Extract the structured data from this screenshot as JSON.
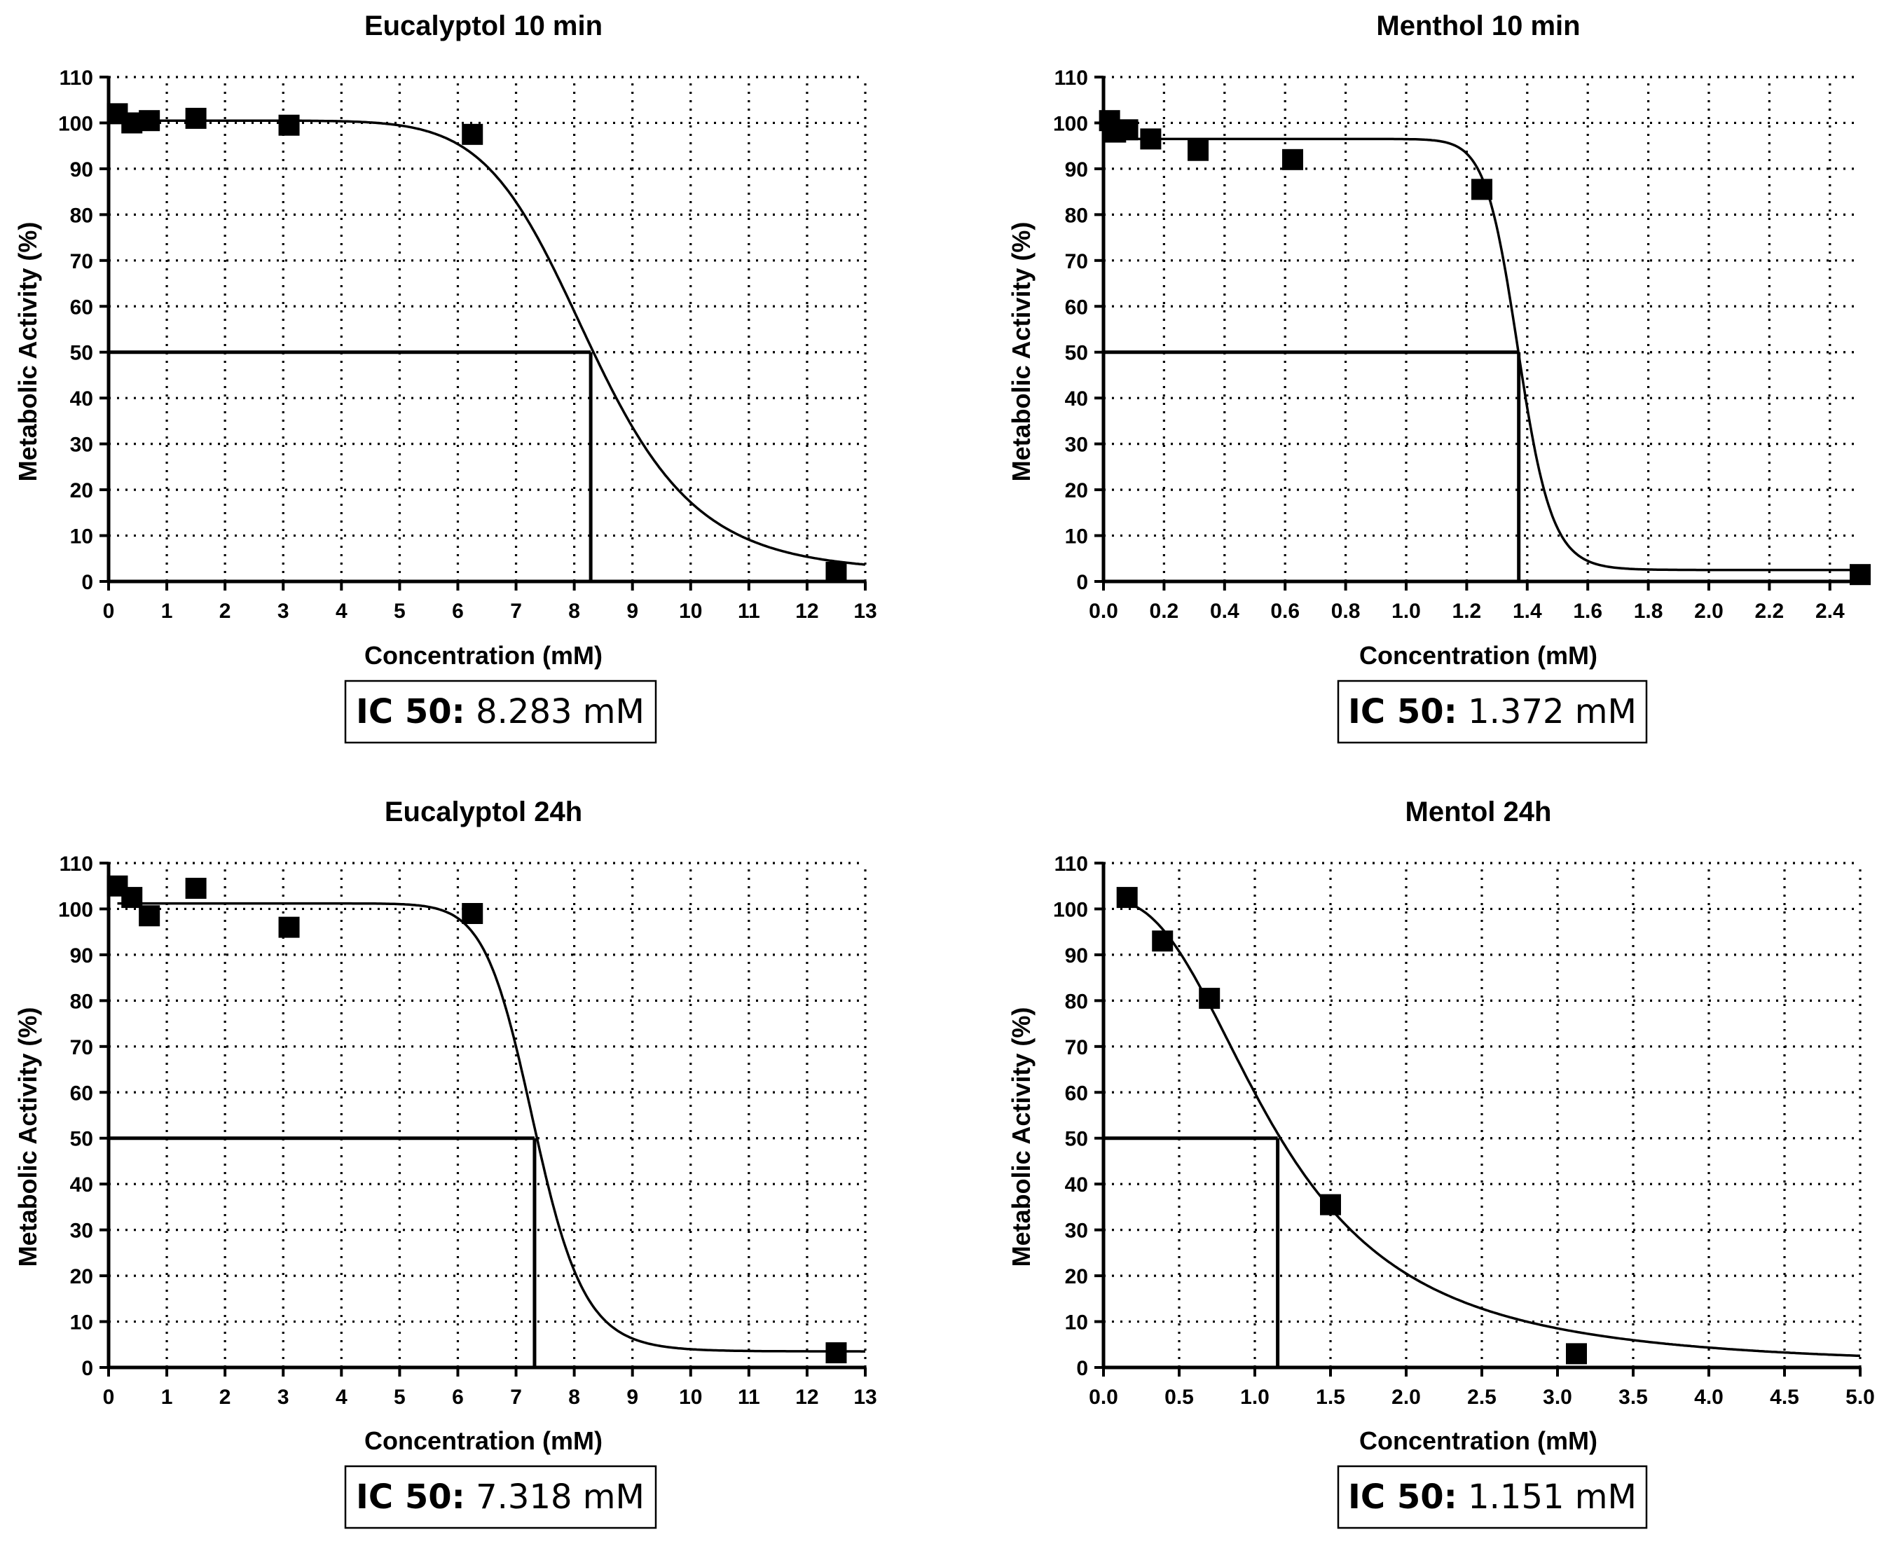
{
  "chart_data": [
    {
      "type": "scatter",
      "title": "Eucalyptol 10 min",
      "xlabel": "Concentration (mM)",
      "ylabel": "Metabolic Activity (%)",
      "xlim": [
        0,
        13
      ],
      "ylim": [
        0,
        110
      ],
      "x_ticks": [
        "0",
        "1",
        "2",
        "3",
        "4",
        "5",
        "6",
        "7",
        "8",
        "9",
        "10",
        "11",
        "12",
        "13"
      ],
      "y_ticks": [
        "0",
        "10",
        "20",
        "30",
        "40",
        "50",
        "60",
        "70",
        "80",
        "90",
        "100",
        "110"
      ],
      "grid": true,
      "points": {
        "x": [
          0.15,
          0.4,
          0.7,
          1.5,
          3.1,
          6.25,
          12.5
        ],
        "y": [
          102,
          100,
          100.5,
          101,
          99.5,
          97.5,
          2
        ]
      },
      "fit": {
        "top": 100.5,
        "bottom": 2,
        "ic50": 8.283,
        "hill": 9
      },
      "ic50_guide": {
        "x": 8.283,
        "y": 50
      },
      "ic50_label": "IC 50:",
      "ic50_value": "8.283 mM"
    },
    {
      "type": "scatter",
      "title": "Menthol 10 min",
      "xlabel": "Concentration (mM)",
      "ylabel": "Metabolic Activity (%)",
      "xlim": [
        0,
        2.5
      ],
      "ylim": [
        0,
        110
      ],
      "x_ticks": [
        "0.0",
        "0.2",
        "0.4",
        "0.6",
        "0.8",
        "1.0",
        "1.2",
        "1.4",
        "1.6",
        "1.8",
        "2.0",
        "2.2",
        "2.4"
      ],
      "y_ticks": [
        "0",
        "10",
        "20",
        "30",
        "40",
        "50",
        "60",
        "70",
        "80",
        "90",
        "100",
        "110"
      ],
      "grid": true,
      "points": {
        "x": [
          0.02,
          0.04,
          0.08,
          0.156,
          0.3125,
          0.625,
          1.25,
          2.5
        ],
        "y": [
          100.5,
          98,
          98.5,
          96.5,
          94,
          92,
          85.5,
          1.5
        ]
      },
      "fit": {
        "top": 96.5,
        "bottom": 2.5,
        "ic50": 1.372,
        "hill": 25
      },
      "ic50_guide": {
        "x": 1.372,
        "y": 50
      },
      "ic50_label": "IC 50:",
      "ic50_value": "1.372 mM"
    },
    {
      "type": "scatter",
      "title": "Eucalyptol 24h",
      "xlabel": "Concentration (mM)",
      "ylabel": "Metabolic Activity (%)",
      "xlim": [
        0,
        13
      ],
      "ylim": [
        0,
        110
      ],
      "x_ticks": [
        "0",
        "1",
        "2",
        "3",
        "4",
        "5",
        "6",
        "7",
        "8",
        "9",
        "10",
        "11",
        "12",
        "13"
      ],
      "y_ticks": [
        "0",
        "10",
        "20",
        "30",
        "40",
        "50",
        "60",
        "70",
        "80",
        "90",
        "100",
        "110"
      ],
      "grid": true,
      "points": {
        "x": [
          0.15,
          0.4,
          0.7,
          1.5,
          3.1,
          6.25,
          12.5
        ],
        "y": [
          105,
          102.5,
          98.5,
          104.5,
          96,
          99,
          3.2
        ]
      },
      "fit": {
        "top": 101.2,
        "bottom": 3.5,
        "ic50": 7.318,
        "hill": 17
      },
      "ic50_guide": {
        "x": 7.318,
        "y": 50
      },
      "ic50_label": "IC 50:",
      "ic50_value": "7.318 mM"
    },
    {
      "type": "scatter",
      "title": "Mentol 24h",
      "xlabel": "Concentration (mM)",
      "ylabel": "Metabolic Activity (%)",
      "xlim": [
        0,
        5
      ],
      "ylim": [
        0,
        110
      ],
      "x_ticks": [
        "0.0",
        "0.5",
        "1.0",
        "1.5",
        "2.0",
        "2.5",
        "3.0",
        "3.5",
        "4.0",
        "4.5",
        "5.0"
      ],
      "y_ticks": [
        "0",
        "10",
        "20",
        "30",
        "40",
        "50",
        "60",
        "70",
        "80",
        "90",
        "100",
        "110"
      ],
      "grid": true,
      "points": {
        "x": [
          0.156,
          0.39,
          0.7,
          1.5,
          3.125
        ],
        "y": [
          102.5,
          93,
          80.5,
          35.5,
          3
        ]
      },
      "fit": {
        "top": 102,
        "bottom": 0,
        "ic50": 1.151,
        "hill": 2.5
      },
      "ic50_guide": {
        "x": 1.151,
        "y": 50
      },
      "ic50_label": "IC 50:",
      "ic50_value": "1.151 mM"
    }
  ]
}
